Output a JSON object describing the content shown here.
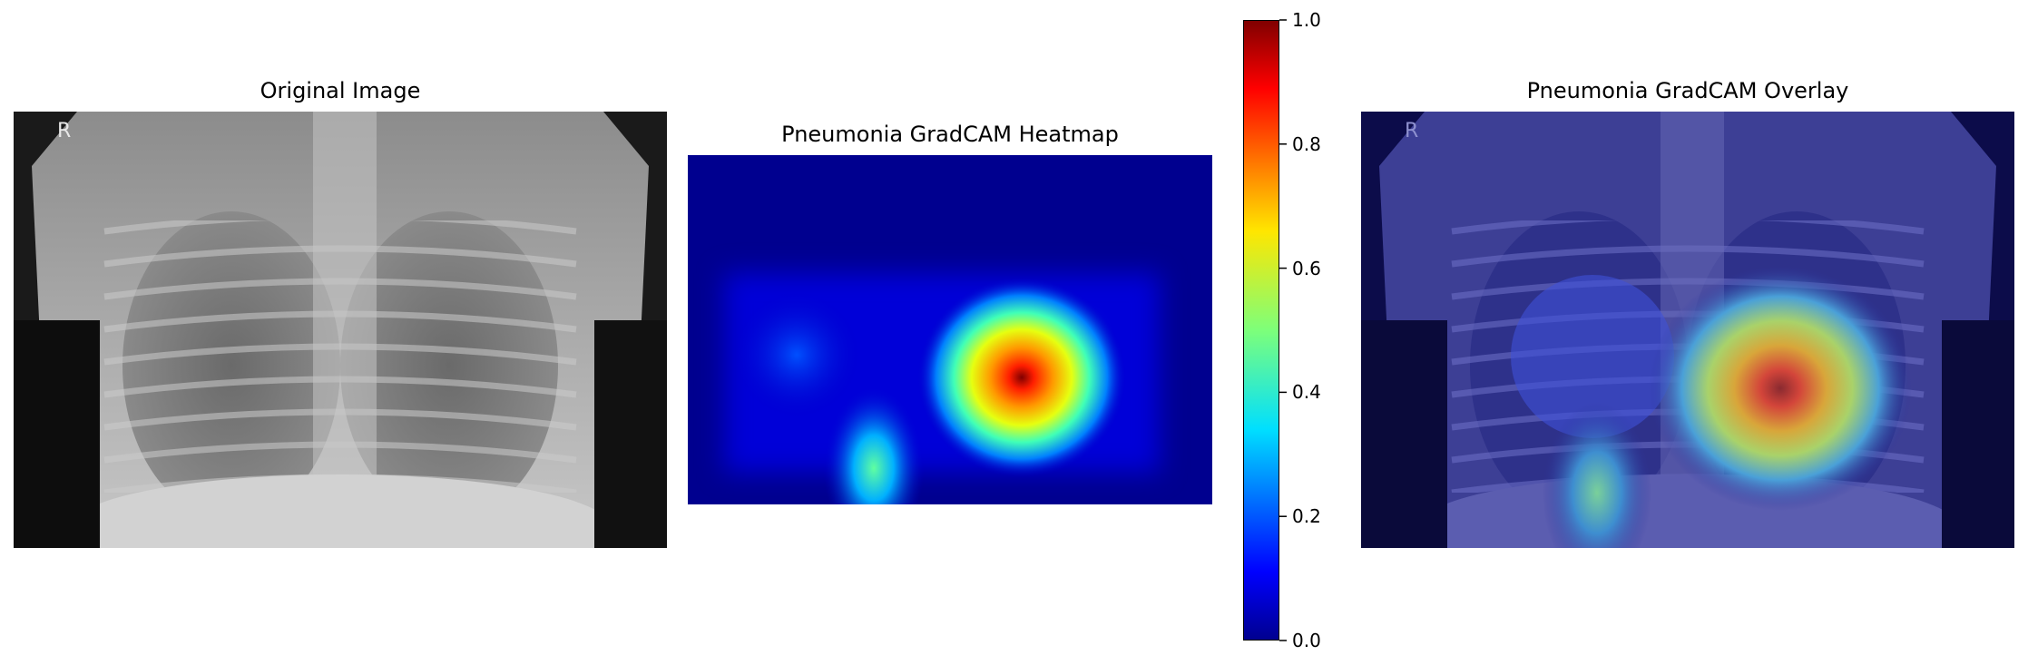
{
  "panels": {
    "original": {
      "title": "Original Image",
      "marker": "R"
    },
    "heatmap": {
      "title": "Pneumonia GradCAM Heatmap"
    },
    "overlay": {
      "title": "Pneumonia GradCAM Overlay",
      "marker": "R"
    }
  },
  "colorbar": {
    "colormap": "jet",
    "ticks": [
      "0.0",
      "0.2",
      "0.4",
      "0.6",
      "0.8",
      "1.0"
    ],
    "range": [
      0.0,
      1.0
    ]
  },
  "chart_data": [
    {
      "type": "image",
      "title": "Original Image",
      "content": "chest X-ray (grayscale)"
    },
    {
      "type": "heatmap",
      "title": "Pneumonia GradCAM Heatmap",
      "colormap": "jet",
      "value_range": [
        0.0,
        1.0
      ],
      "hotspots": [
        {
          "region": "center-right",
          "value": 1.0
        },
        {
          "region": "bottom-center",
          "value": 0.45
        },
        {
          "region": "left",
          "value": 0.18
        }
      ]
    },
    {
      "type": "image",
      "title": "Pneumonia GradCAM Overlay",
      "content": "X-ray with jet heatmap overlay"
    }
  ]
}
